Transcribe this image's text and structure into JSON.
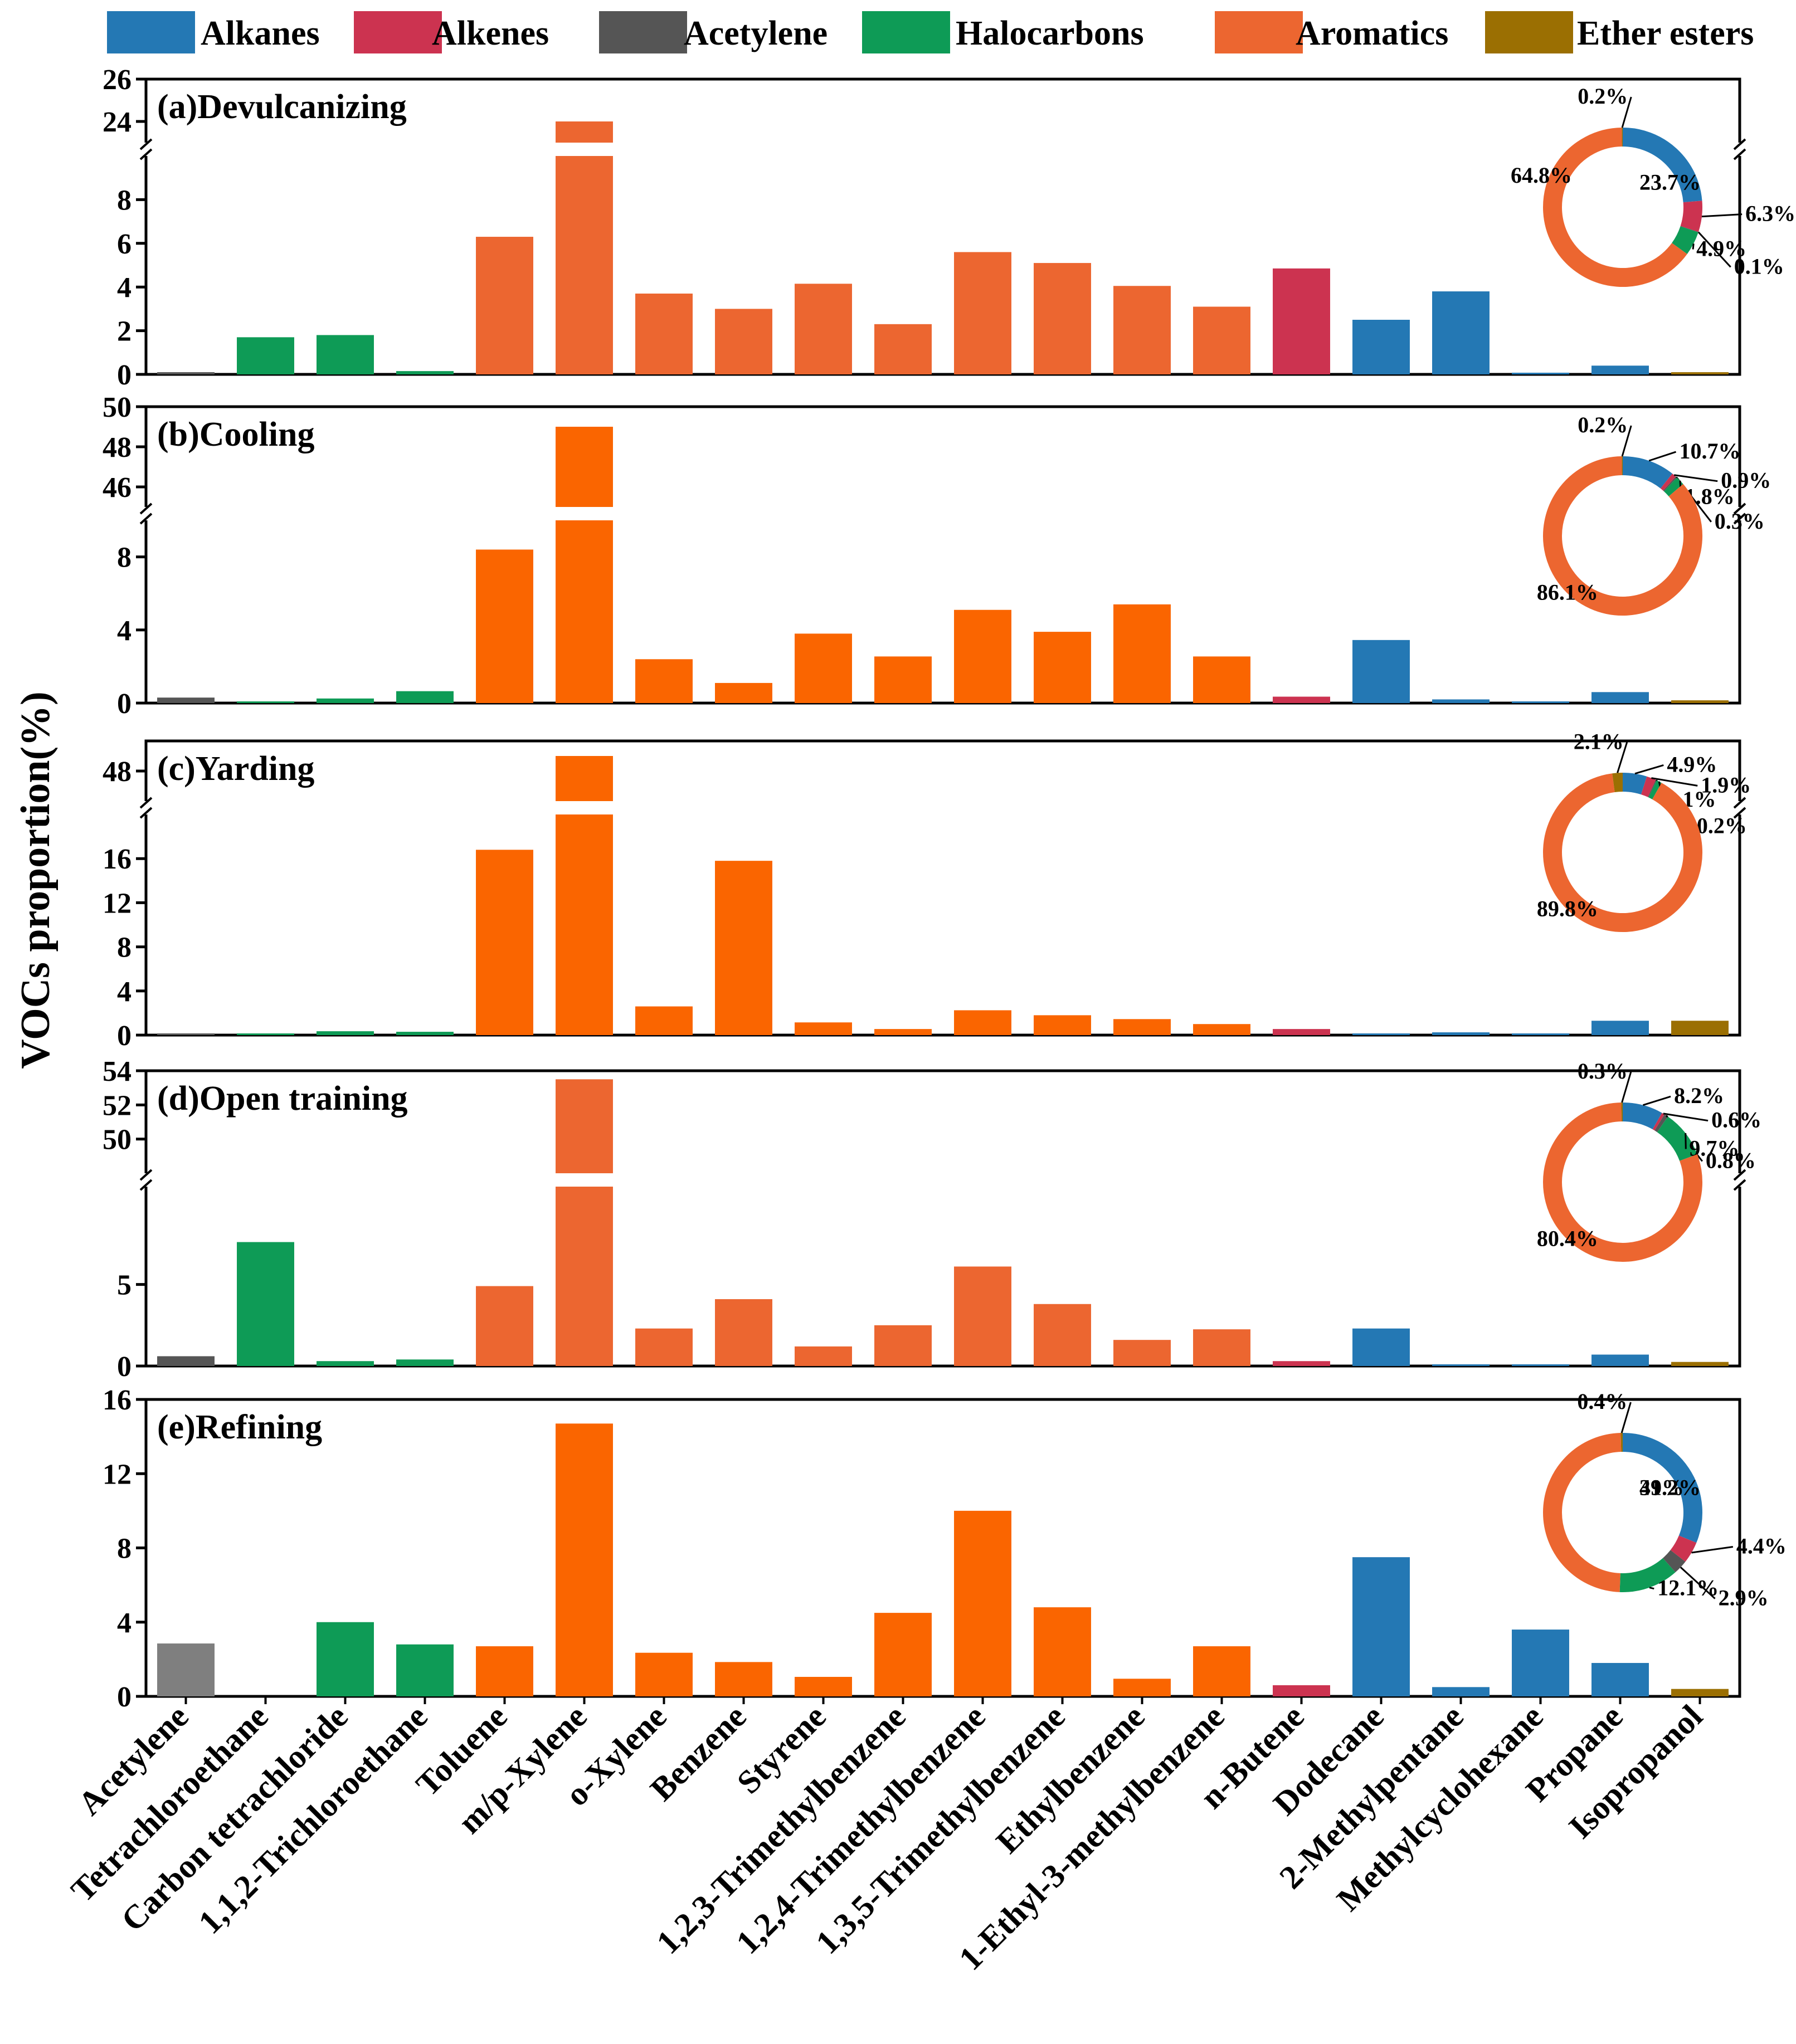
{
  "colors": {
    "Alkanes": "#2478b4",
    "Alkenes": "#cc3350",
    "Acetylene": "#555555",
    "Halocarbons": "#0e9b56",
    "Aromatics": "#ec6630",
    "Ether esters": "#9b6f02"
  },
  "legend": [
    "Alkanes",
    "Alkenes",
    "Acetylene",
    "Halocarbons",
    "Aromatics",
    "Ether esters"
  ],
  "y_axis_label": "VOCs proportion(%)",
  "chart_data": {
    "type": "bar",
    "categories": [
      "Acetylene",
      "Tetrachloroethane",
      "Carbon tetrachloride",
      "1,1,2-Trichloroethane",
      "Toluene",
      "m/p-Xylene",
      "o-Xylene",
      "Benzene",
      "Styrene",
      "1,2,3-Trimethylbenzene",
      "1,2,4-Trimethylbenzene",
      "1,3,5-Trimethylbenzene",
      "Ethylbenzene",
      "1-Ethyl-3-methylbenzene",
      "n-Butene",
      "Dodecane",
      "2-Methylpentane",
      "Methylcyclohexane",
      "Propane",
      "Isopropanol"
    ],
    "category_groups": [
      "Acetylene",
      "Halocarbons",
      "Halocarbons",
      "Halocarbons",
      "Aromatics",
      "Aromatics",
      "Aromatics",
      "Aromatics",
      "Aromatics",
      "Aromatics",
      "Aromatics",
      "Aromatics",
      "Aromatics",
      "Aromatics",
      "Alkenes",
      "Alkanes",
      "Alkanes",
      "Alkanes",
      "Alkanes",
      "Ether esters"
    ],
    "xlabel": "",
    "ylabel": "VOCs proportion(%)",
    "panels": [
      {
        "title": "(a)Devulcanizing",
        "values": [
          0.1,
          1.7,
          1.8,
          0.15,
          6.3,
          24.0,
          3.7,
          3.0,
          4.15,
          2.3,
          5.6,
          5.1,
          4.05,
          3.1,
          4.85,
          2.5,
          3.8,
          0.05,
          0.4,
          0.1
        ],
        "broken_axis": true,
        "lower_range": [
          0,
          10
        ],
        "upper_range": [
          23,
          26
        ],
        "lower_ticks": [
          "0",
          "2",
          "4",
          "6",
          "8"
        ],
        "upper_ticks": [
          "24",
          "26"
        ],
        "aromatic_color": "#ec6630",
        "acetylene_color": "#555555",
        "donut": {
          "order": [
            "Alkanes",
            "Alkenes",
            "Acetylene",
            "Halocarbons",
            "Aromatics",
            "Ether esters"
          ],
          "values": [
            23.7,
            6.3,
            0.1,
            4.9,
            64.8,
            0.2
          ],
          "labels": [
            "23.7%",
            "6.3%",
            "0.1%",
            "4.9%",
            "64.8%",
            "0.2%"
          ]
        }
      },
      {
        "title": "(b)Cooling",
        "values": [
          0.3,
          0.05,
          0.25,
          0.65,
          8.4,
          49.0,
          2.4,
          1.1,
          3.8,
          2.55,
          5.1,
          3.9,
          5.4,
          2.55,
          0.35,
          3.45,
          0.2,
          0.05,
          0.6,
          0.15
        ],
        "broken_axis": true,
        "lower_range": [
          0,
          10
        ],
        "upper_range": [
          45,
          50
        ],
        "lower_ticks": [
          "0",
          "4",
          "8"
        ],
        "upper_ticks": [
          "46",
          "48",
          "50"
        ],
        "aromatic_color": "#fa6500",
        "acetylene_color": "#555555",
        "donut": {
          "order": [
            "Alkanes",
            "Alkenes",
            "Acetylene",
            "Halocarbons",
            "Aromatics",
            "Ether esters"
          ],
          "values": [
            10.7,
            0.9,
            0.3,
            1.8,
            86.1,
            0.2
          ],
          "labels": [
            "10.7%",
            "0.9%",
            "0.3%",
            "1.8%",
            "86.1%",
            "0.2%"
          ]
        }
      },
      {
        "title": "(c)Yarding",
        "values": [
          0.1,
          0.1,
          0.35,
          0.3,
          16.8,
          48.5,
          2.6,
          15.8,
          1.15,
          0.55,
          2.25,
          1.8,
          1.45,
          1.0,
          0.55,
          0.05,
          0.25,
          0.05,
          1.3,
          1.3
        ],
        "broken_axis": true,
        "lower_range": [
          0,
          20
        ],
        "upper_range": [
          47,
          49
        ],
        "lower_ticks": [
          "0",
          "4",
          "8",
          "12",
          "16"
        ],
        "upper_ticks": [
          "48"
        ],
        "aromatic_color": "#fa6500",
        "acetylene_color": "#555555",
        "donut": {
          "order": [
            "Alkanes",
            "Alkenes",
            "Acetylene",
            "Halocarbons",
            "Aromatics",
            "Ether esters"
          ],
          "values": [
            4.9,
            1.9,
            0.2,
            1.1,
            89.8,
            2.1
          ],
          "labels": [
            "4.9%",
            "1.9%",
            "0.2%",
            "1.1%",
            "89.8%",
            "2.1%"
          ]
        }
      },
      {
        "title": "(d)Open training",
        "values": [
          0.6,
          7.6,
          0.3,
          0.4,
          4.9,
          53.5,
          2.3,
          4.1,
          1.2,
          2.5,
          6.1,
          3.8,
          1.6,
          2.25,
          0.3,
          2.3,
          0.1,
          0.05,
          0.7,
          0.25
        ],
        "broken_axis": true,
        "lower_range": [
          0,
          11
        ],
        "upper_range": [
          48,
          54
        ],
        "lower_ticks": [
          "0",
          "5"
        ],
        "upper_ticks": [
          "50",
          "52",
          "54"
        ],
        "aromatic_color": "#ec6630",
        "acetylene_color": "#555555",
        "donut": {
          "order": [
            "Alkanes",
            "Alkenes",
            "Acetylene",
            "Halocarbons",
            "Aromatics",
            "Ether esters"
          ],
          "values": [
            8.2,
            0.6,
            0.8,
            9.7,
            80.4,
            0.3
          ],
          "labels": [
            "8.2%",
            "0.6%",
            "0.8%",
            "9.7%",
            "80.4%",
            "0.3%"
          ]
        }
      },
      {
        "title": "(e)Refining",
        "values": [
          2.85,
          0.0,
          4.0,
          2.8,
          2.7,
          14.7,
          2.35,
          1.85,
          1.05,
          4.5,
          10.0,
          4.8,
          0.95,
          2.7,
          0.6,
          7.5,
          0.5,
          3.6,
          1.8,
          0.4
        ],
        "broken_axis": false,
        "lower_range": [
          0,
          16
        ],
        "lower_ticks": [
          "0",
          "4",
          "8",
          "12",
          "16"
        ],
        "upper_ticks": [],
        "aromatic_color": "#fa6500",
        "acetylene_color": "#7f7f7f",
        "donut": {
          "order": [
            "Alkanes",
            "Alkenes",
            "Acetylene",
            "Halocarbons",
            "Aromatics",
            "Ether esters"
          ],
          "values": [
            31.2,
            4.4,
            2.9,
            12.1,
            49.0,
            0.4
          ],
          "labels": [
            "31.2%",
            "4.4%",
            "2.9%",
            "12.1%",
            "49%",
            "0.4%"
          ]
        }
      }
    ]
  }
}
